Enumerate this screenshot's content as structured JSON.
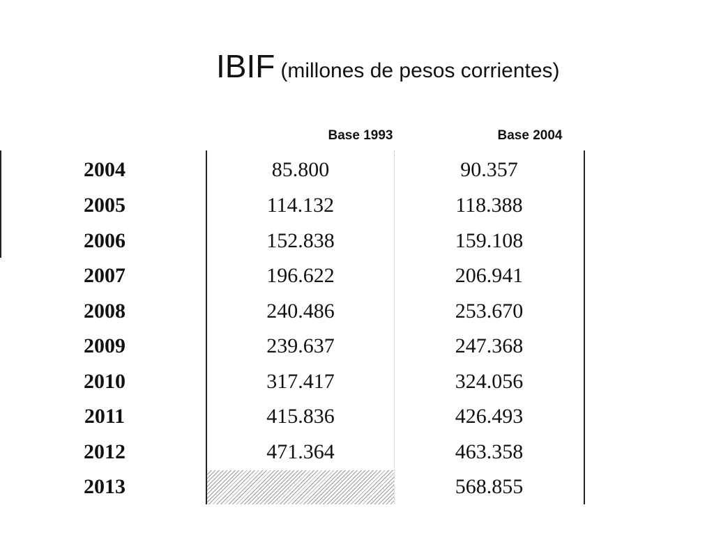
{
  "title": {
    "main": "IBIF",
    "subtitle": "(millones de pesos corrientes)"
  },
  "table": {
    "columns": [
      "Base 1993",
      "Base 2004"
    ],
    "rows": [
      {
        "year": "2004",
        "base_1993": "85.800",
        "base_2004": "90.357"
      },
      {
        "year": "2005",
        "base_1993": "114.132",
        "base_2004": "118.388"
      },
      {
        "year": "2006",
        "base_1993": "152.838",
        "base_2004": "159.108"
      },
      {
        "year": "2007",
        "base_1993": "196.622",
        "base_2004": "206.941"
      },
      {
        "year": "2008",
        "base_1993": "240.486",
        "base_2004": "253.670"
      },
      {
        "year": "2009",
        "base_1993": "239.637",
        "base_2004": "247.368"
      },
      {
        "year": "2010",
        "base_1993": "317.417",
        "base_2004": "324.056"
      },
      {
        "year": "2011",
        "base_1993": "415.836",
        "base_2004": "426.493"
      },
      {
        "year": "2012",
        "base_1993": "471.364",
        "base_2004": "463.358"
      },
      {
        "year": "2013",
        "base_1993": "",
        "base_2004": "568.855"
      }
    ]
  }
}
